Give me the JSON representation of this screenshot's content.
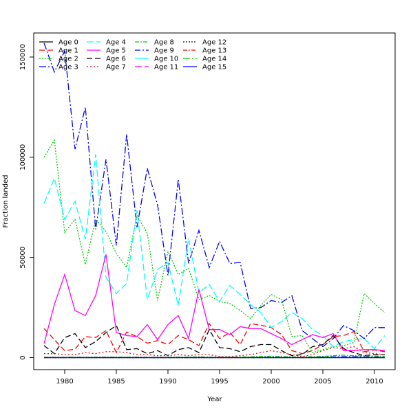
{
  "chart_data": {
    "type": "line",
    "title": "",
    "xlabel": "Year",
    "ylabel": "Fraction landed",
    "xlim": [
      1977,
      2012
    ],
    "ylim": [
      -6000,
      162000
    ],
    "x_ticks": [
      1980,
      1985,
      1990,
      1995,
      2000,
      2005,
      2010
    ],
    "y_ticks": [
      0,
      50000,
      100000,
      150000
    ],
    "grid": false,
    "legend_position": "top-left",
    "years": [
      1978,
      1979,
      1980,
      1981,
      1982,
      1983,
      1984,
      1985,
      1986,
      1987,
      1988,
      1989,
      1990,
      1991,
      1992,
      1993,
      1994,
      1995,
      1996,
      1997,
      1998,
      1999,
      2000,
      2001,
      2002,
      2003,
      2004,
      2005,
      2006,
      2007,
      2008,
      2009,
      2010,
      2011
    ],
    "series": [
      {
        "name": "Age 0",
        "color": "#000000",
        "dash": "",
        "values": [
          0,
          0,
          0,
          0,
          0,
          0,
          0,
          0,
          0,
          0,
          0,
          0,
          0,
          0,
          0,
          0,
          0,
          0,
          0,
          0,
          0,
          0,
          0,
          0,
          0,
          0,
          0,
          0,
          0,
          0,
          0,
          0,
          0,
          0
        ]
      },
      {
        "name": "Age 1",
        "color": "#ff0000",
        "dash": "8,4",
        "values": [
          14500,
          9000,
          3500,
          4200,
          10500,
          10000,
          13500,
          2500,
          12800,
          10500,
          7200,
          8500,
          6500,
          11000,
          9000,
          6000,
          17000,
          9500,
          12500,
          6500,
          17000,
          16200,
          15000,
          11500,
          3500,
          2000,
          3500,
          6500,
          10500,
          11000,
          13000,
          3000,
          3800,
          3000
        ]
      },
      {
        "name": "Age 2",
        "color": "#00cd00",
        "dash": "2,2",
        "values": [
          100000,
          108500,
          62500,
          69000,
          46500,
          69000,
          63000,
          52000,
          45000,
          71000,
          62000,
          28500,
          53000,
          41500,
          44500,
          29000,
          31000,
          28000,
          27000,
          23500,
          19500,
          26000,
          31500,
          29000,
          10500,
          11000,
          2500,
          4000,
          5500,
          6000,
          7500,
          32000,
          27000,
          22500
        ]
      },
      {
        "name": "Age 3",
        "color": "#0000ff",
        "dash": "10,3,2,3",
        "values": [
          157000,
          142500,
          153000,
          104000,
          125000,
          64000,
          99000,
          56000,
          111500,
          65000,
          94500,
          76000,
          41000,
          89000,
          47000,
          63500,
          45000,
          58000,
          47000,
          47500,
          24500,
          25000,
          28500,
          27500,
          31000,
          13500,
          9500,
          5500,
          9500,
          16000,
          13500,
          9500,
          15000,
          15000
        ]
      },
      {
        "name": "Age 4",
        "color": "#00ffff",
        "dash": "10,4",
        "values": [
          77000,
          89500,
          69000,
          78000,
          59000,
          101500,
          40000,
          32000,
          37000,
          73500,
          29000,
          44000,
          47500,
          26000,
          59500,
          32500,
          36500,
          28000,
          36000,
          31500,
          26500,
          22500,
          15000,
          18000,
          22500,
          19500,
          14000,
          11000,
          5500,
          8000,
          9000,
          9500,
          4500,
          11000
        ]
      },
      {
        "name": "Age 5",
        "color": "#ff00ff",
        "dash": "",
        "values": [
          7000,
          26500,
          41500,
          23500,
          21000,
          31000,
          51500,
          12500,
          11000,
          10500,
          16500,
          9000,
          16500,
          21000,
          9500,
          34000,
          14000,
          14000,
          11500,
          15500,
          14500,
          14500,
          12000,
          9500,
          6500,
          9000,
          11500,
          10000,
          12000,
          3500,
          3500,
          4000,
          4000,
          3500
        ]
      },
      {
        "name": "Age 6",
        "color": "#000000",
        "dash": "8,4",
        "values": [
          6000,
          2000,
          10000,
          12000,
          5000,
          8000,
          12500,
          16000,
          4000,
          4500,
          2000,
          3500,
          1000,
          4000,
          5000,
          2500,
          14000,
          5000,
          4500,
          3000,
          5500,
          6500,
          6500,
          3500,
          1000,
          1500,
          5500,
          6500,
          11000,
          4500,
          2500,
          1000,
          1500,
          1500
        ]
      },
      {
        "name": "Age 7",
        "color": "#ff0000",
        "dash": "2,3",
        "values": [
          2000,
          2000,
          1500,
          1500,
          2500,
          2000,
          3000,
          3000,
          2500,
          1500,
          1500,
          1000,
          1000,
          1500,
          1000,
          1500,
          1500,
          500,
          500,
          1000,
          1500,
          2500,
          3500,
          2500,
          1500,
          500,
          1500,
          3500,
          5000,
          4500,
          5500,
          2500,
          2000,
          1500
        ]
      },
      {
        "name": "Age 8",
        "color": "#00cd00",
        "dash": "6,2,2,2",
        "values": [
          200,
          200,
          200,
          300,
          200,
          300,
          300,
          300,
          300,
          300,
          200,
          200,
          200,
          300,
          300,
          400,
          300,
          300,
          300,
          300,
          400,
          500,
          600,
          500,
          400,
          300,
          500,
          600,
          1000,
          1200,
          1000,
          900,
          800,
          700
        ]
      },
      {
        "name": "Age 9",
        "color": "#0000ff",
        "dash": "8,3,2,3",
        "values": [
          100,
          100,
          100,
          100,
          100,
          100,
          100,
          100,
          100,
          100,
          100,
          100,
          100,
          100,
          100,
          200,
          100,
          100,
          100,
          100,
          100,
          200,
          200,
          200,
          100,
          100,
          200,
          300,
          400,
          500,
          500,
          400,
          300,
          300
        ]
      },
      {
        "name": "Age 10",
        "color": "#00ffff",
        "dash": "",
        "values": [
          50,
          50,
          50,
          50,
          50,
          50,
          50,
          50,
          50,
          50,
          50,
          50,
          50,
          50,
          50,
          100,
          50,
          50,
          50,
          50,
          50,
          100,
          100,
          100,
          50,
          50,
          100,
          150,
          200,
          200,
          200,
          150,
          150,
          100
        ]
      },
      {
        "name": "Age 11",
        "color": "#ff00ff",
        "dash": "10,4",
        "values": [
          20,
          20,
          20,
          20,
          20,
          20,
          20,
          20,
          20,
          20,
          20,
          20,
          20,
          20,
          20,
          50,
          20,
          20,
          20,
          20,
          20,
          50,
          50,
          50,
          20,
          20,
          50,
          80,
          100,
          100,
          100,
          80,
          80,
          50
        ]
      },
      {
        "name": "Age 12",
        "color": "#000000",
        "dash": "2,2",
        "values": [
          10,
          10,
          10,
          10,
          10,
          10,
          10,
          10,
          10,
          10,
          10,
          10,
          10,
          10,
          10,
          20,
          10,
          10,
          10,
          10,
          10,
          20,
          20,
          20,
          10,
          10,
          20,
          40,
          50,
          50,
          50,
          40,
          40,
          30
        ]
      },
      {
        "name": "Age 13",
        "color": "#ff0000",
        "dash": "6,2,2,2",
        "values": [
          5,
          5,
          5,
          5,
          5,
          5,
          5,
          5,
          5,
          5,
          5,
          5,
          5,
          5,
          5,
          10,
          5,
          5,
          5,
          5,
          5,
          10,
          10,
          10,
          5,
          5,
          10,
          20,
          30,
          30,
          30,
          20,
          20,
          15
        ]
      },
      {
        "name": "Age 14",
        "color": "#00cd00",
        "dash": "10,3,2,3",
        "values": [
          2,
          2,
          2,
          2,
          2,
          2,
          2,
          2,
          2,
          2,
          2,
          2,
          2,
          2,
          2,
          5,
          2,
          2,
          2,
          2,
          2,
          5,
          5,
          5,
          2,
          2,
          5,
          10,
          15,
          15,
          15,
          10,
          10,
          8
        ]
      },
      {
        "name": "Age 15",
        "color": "#0000ff",
        "dash": "",
        "values": [
          1,
          1,
          1,
          1,
          1,
          1,
          1,
          1,
          1,
          1,
          1,
          1,
          1,
          1,
          1,
          2,
          1,
          1,
          1,
          1,
          1,
          2,
          2,
          2,
          1,
          1,
          2,
          5,
          8,
          8,
          8,
          5,
          5,
          4
        ]
      }
    ]
  }
}
